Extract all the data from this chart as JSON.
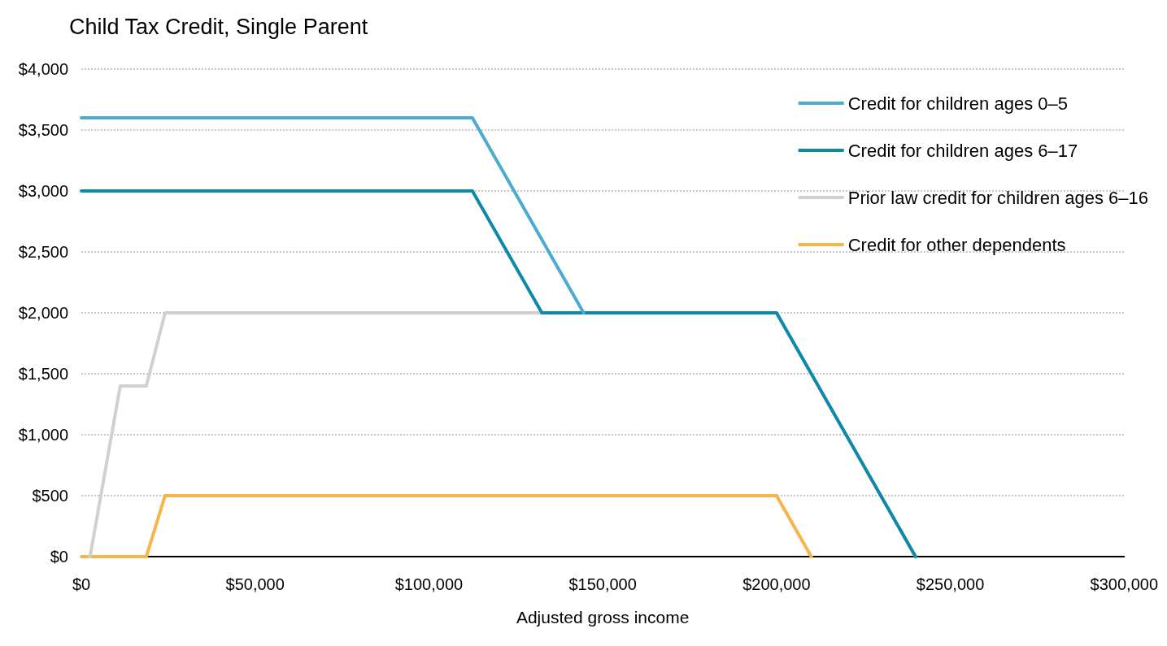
{
  "chart_data": {
    "type": "line",
    "title": "Child Tax Credit, Single Parent",
    "xlabel": "Adjusted gross income",
    "series": [
      {
        "name": "Credit for children ages 0–5",
        "color": "#4bacd0",
        "x": [
          0,
          112500,
          144500
        ],
        "values": [
          3600,
          3600,
          2000
        ]
      },
      {
        "name": "Credit for children ages 6–17",
        "color": "#0d8aa8",
        "x": [
          0,
          112500,
          132500,
          200000,
          240000
        ],
        "values": [
          3000,
          3000,
          2000,
          2000,
          0
        ]
      },
      {
        "name": "Prior law credit for children ages 6–16",
        "color": "#d0d0d0",
        "x": [
          2500,
          11200,
          18700,
          24100,
          200000,
          240000
        ],
        "values": [
          0,
          1400,
          1400,
          2000,
          2000,
          0
        ]
      },
      {
        "name": "Credit for other dependents",
        "color": "#f8b448",
        "x": [
          0,
          18700,
          24100,
          200000,
          210000
        ],
        "values": [
          0,
          0,
          500,
          500,
          0
        ]
      }
    ],
    "xlim": [
      0,
      300000
    ],
    "xticks": [
      {
        "value": 0,
        "label": "$0"
      },
      {
        "value": 50000,
        "label": "$50,000"
      },
      {
        "value": 100000,
        "label": "$100,000"
      },
      {
        "value": 150000,
        "label": "$150,000"
      },
      {
        "value": 200000,
        "label": "$200,000"
      },
      {
        "value": 250000,
        "label": "$250,000"
      },
      {
        "value": 300000,
        "label": "$300,000"
      }
    ],
    "ylim": [
      0,
      4000
    ],
    "yticks": [
      {
        "value": 0,
        "label": "$0"
      },
      {
        "value": 500,
        "label": "$500"
      },
      {
        "value": 1000,
        "label": "$1,000"
      },
      {
        "value": 1500,
        "label": "$1,500"
      },
      {
        "value": 2000,
        "label": "$2,000"
      },
      {
        "value": 2500,
        "label": "$2,500"
      },
      {
        "value": 3000,
        "label": "$3,000"
      },
      {
        "value": 3500,
        "label": "$3,500"
      },
      {
        "value": 4000,
        "label": "$4,000"
      }
    ],
    "grid": "y",
    "legend": "top right",
    "marker": "none",
    "line_style": "solid"
  }
}
